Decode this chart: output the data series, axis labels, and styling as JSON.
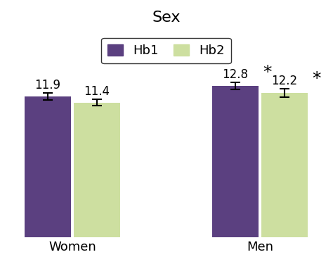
{
  "title": "Sex",
  "groups": [
    "Women",
    "Men"
  ],
  "series": [
    "Hb1",
    "Hb2"
  ],
  "values": [
    [
      11.9,
      11.4
    ],
    [
      12.8,
      12.2
    ]
  ],
  "errors": [
    [
      0.3,
      0.25
    ],
    [
      0.3,
      0.35
    ]
  ],
  "bar_colors": [
    "#5b4080",
    "#cddfa0"
  ],
  "bar_width": 0.33,
  "group_centers": [
    0.83,
    2.17
  ],
  "bar_gap": 0.02,
  "ylim": [
    0,
    14.5
  ],
  "significance": [
    [
      false,
      false
    ],
    [
      true,
      true
    ]
  ],
  "value_labels": [
    [
      "11.9",
      "11.4"
    ],
    [
      "12.8",
      "12.2"
    ]
  ],
  "background_color": "#ffffff",
  "title_fontsize": 16,
  "tick_fontsize": 12,
  "label_fontsize": 13,
  "star_fontsize": 18,
  "legend_fontsize": 13
}
